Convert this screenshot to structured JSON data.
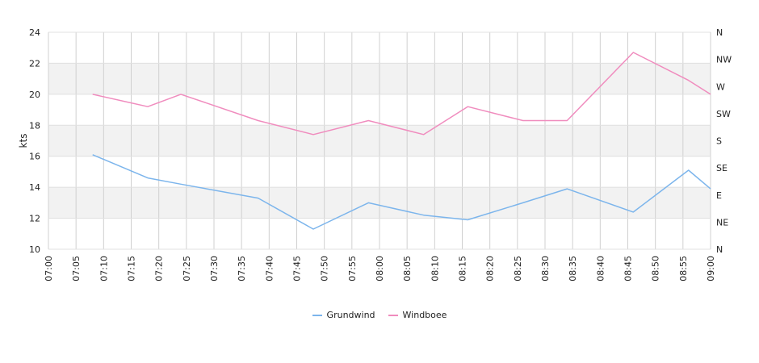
{
  "chart_data": {
    "type": "line",
    "ylabel": "kts",
    "ylim": [
      10,
      24
    ],
    "yticks": [
      "10",
      "12",
      "14",
      "16",
      "18",
      "20",
      "22",
      "24"
    ],
    "xticks": [
      "07:00",
      "07:05",
      "07:10",
      "07:15",
      "07:20",
      "07:25",
      "07:30",
      "07:35",
      "07:40",
      "07:45",
      "07:50",
      "07:55",
      "08:00",
      "08:05",
      "08:10",
      "08:15",
      "08:20",
      "08:25",
      "08:30",
      "08:35",
      "08:40",
      "08:45",
      "08:50",
      "08:55",
      "09:00"
    ],
    "xlim": [
      "07:00",
      "09:00"
    ],
    "right_axis_labels": [
      "N",
      "NE",
      "E",
      "SE",
      "S",
      "SW",
      "W",
      "NW",
      "N"
    ],
    "grid": true,
    "legend_position": "bottom-center",
    "series": [
      {
        "name": "Grundwind",
        "color": "#7cb5ec",
        "x": [
          "07:08",
          "07:18",
          "07:24",
          "07:38",
          "07:48",
          "07:58",
          "08:08",
          "08:16",
          "08:26",
          "08:34",
          "08:46",
          "08:56",
          "09:00"
        ],
        "values": [
          16.1,
          14.6,
          14.2,
          13.3,
          11.3,
          13.0,
          12.2,
          11.9,
          13.0,
          13.9,
          12.4,
          15.1,
          13.9
        ]
      },
      {
        "name": "Windboee",
        "color": "#f08cbe",
        "x": [
          "07:08",
          "07:18",
          "07:24",
          "07:38",
          "07:48",
          "07:58",
          "08:08",
          "08:16",
          "08:26",
          "08:34",
          "08:46",
          "08:56",
          "09:00"
        ],
        "values": [
          20.0,
          19.2,
          20.0,
          18.3,
          17.4,
          18.3,
          17.4,
          19.2,
          18.3,
          18.3,
          22.7,
          20.9,
          20.0
        ]
      }
    ]
  }
}
